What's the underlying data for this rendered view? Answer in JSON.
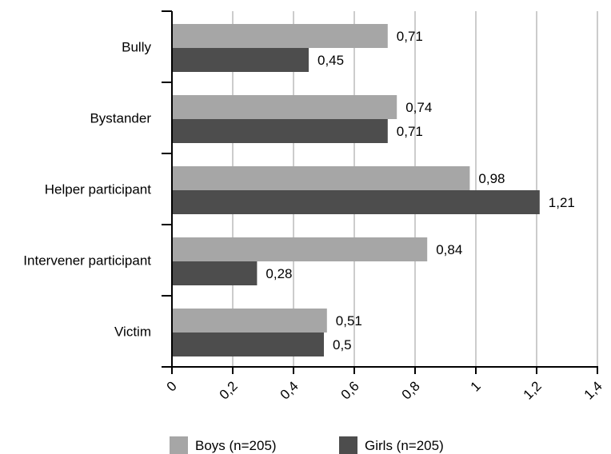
{
  "chart_data": {
    "type": "bar",
    "orientation": "horizontal",
    "categories": [
      "Bully",
      "Bystander",
      "Helper participant",
      "Intervener participant",
      "Victim"
    ],
    "series": [
      {
        "name": "Boys (n=205)",
        "values": [
          0.71,
          0.74,
          0.98,
          0.84,
          0.51
        ],
        "labels": [
          "0,71",
          "0,74",
          "0,98",
          "0,84",
          "0,51"
        ],
        "color": "#a6a6a6"
      },
      {
        "name": "Girls (n=205)",
        "values": [
          0.45,
          0.71,
          1.21,
          0.28,
          0.5
        ],
        "labels": [
          "0,45",
          "0,71",
          "1,21",
          "0,28",
          "0,5"
        ],
        "color": "#4d4d4d"
      }
    ],
    "xlim": [
      0,
      1.4
    ],
    "xticks": [
      0,
      0.2,
      0.4,
      0.6,
      0.8,
      1,
      1.2,
      1.4
    ],
    "xtick_labels": [
      "0",
      "0,2",
      "0,4",
      "0,6",
      "0,8",
      "1",
      "1,2",
      "1,4"
    ],
    "title": "",
    "xlabel": "",
    "ylabel": "",
    "grid": "vertical",
    "grid_color": "#cccccc",
    "legend_position": "bottom"
  }
}
